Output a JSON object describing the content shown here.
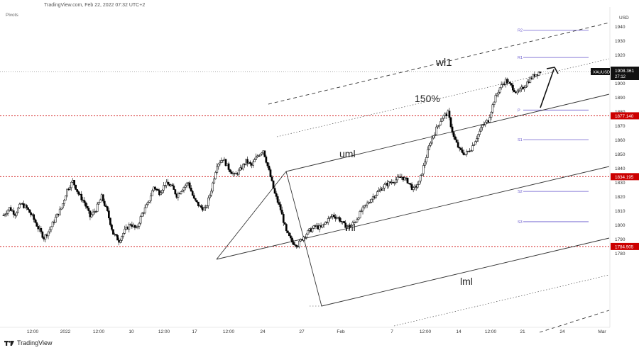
{
  "header": {
    "source": "TradingView.com, Feb 22, 2022 07:32 UTC+2",
    "indicator": "Pivots"
  },
  "footer": {
    "brand": "TradingView"
  },
  "colors": {
    "bull": "#ffffff",
    "bear": "#000000",
    "wick": "#000000",
    "level": "#cc0000",
    "pivot": "#6a5acd",
    "channel": "#333333"
  },
  "chart_data": {
    "type": "candlestick",
    "symbol": "XAUUSD",
    "axis_unit": "USD",
    "last_price": "1908.361",
    "countdown": "27:12",
    "ylim": [
      1776,
      1944
    ],
    "y_ticks": [
      1780,
      1790,
      1800,
      1810,
      1820,
      1830,
      1840,
      1850,
      1860,
      1870,
      1880,
      1890,
      1900,
      1910,
      1920,
      1930,
      1940
    ],
    "x_ticks": [
      "12:00",
      "2022",
      "12:00",
      "10",
      "12:00",
      "17",
      "12:00",
      "24",
      "27",
      "Feb",
      "7",
      "12:00",
      "14",
      "12:00",
      "21",
      "24",
      "Mar"
    ],
    "levels": [
      {
        "value": 1877.14,
        "label": "1877.140"
      },
      {
        "value": 1834.195,
        "label": "1834.195"
      },
      {
        "value": 1784.905,
        "label": "1784.905"
      }
    ],
    "pivots": [
      {
        "name": "R2",
        "value": 1937.5
      },
      {
        "name": "R1",
        "value": 1918.3
      },
      {
        "name": "P",
        "value": 1881.2
      },
      {
        "name": "S1",
        "value": 1860.3
      },
      {
        "name": "S2",
        "value": 1823.8
      },
      {
        "name": "S3",
        "value": 1802.4
      }
    ],
    "annotations": [
      "wl1",
      "150%",
      "uml",
      "ml",
      "lml"
    ],
    "path": [
      [
        0,
        1807
      ],
      [
        4,
        1812
      ],
      [
        8,
        1808
      ],
      [
        12,
        1815
      ],
      [
        16,
        1812
      ],
      [
        20,
        1806
      ],
      [
        24,
        1798
      ],
      [
        28,
        1791
      ],
      [
        32,
        1797
      ],
      [
        36,
        1805
      ],
      [
        40,
        1812
      ],
      [
        44,
        1825
      ],
      [
        48,
        1831
      ],
      [
        52,
        1822
      ],
      [
        56,
        1816
      ],
      [
        60,
        1806
      ],
      [
        64,
        1811
      ],
      [
        68,
        1820
      ],
      [
        72,
        1809
      ],
      [
        76,
        1794
      ],
      [
        80,
        1789
      ],
      [
        84,
        1796
      ],
      [
        88,
        1801
      ],
      [
        92,
        1797
      ],
      [
        96,
        1808
      ],
      [
        100,
        1815
      ],
      [
        104,
        1827
      ],
      [
        108,
        1823
      ],
      [
        112,
        1829
      ],
      [
        116,
        1828
      ],
      [
        120,
        1821
      ],
      [
        124,
        1826
      ],
      [
        128,
        1830
      ],
      [
        132,
        1818
      ],
      [
        136,
        1813
      ],
      [
        140,
        1811
      ],
      [
        144,
        1825
      ],
      [
        148,
        1843
      ],
      [
        152,
        1847
      ],
      [
        156,
        1840
      ],
      [
        160,
        1835
      ],
      [
        164,
        1839
      ],
      [
        168,
        1845
      ],
      [
        172,
        1842
      ],
      [
        176,
        1849
      ],
      [
        180,
        1853
      ],
      [
        184,
        1838
      ],
      [
        188,
        1822
      ],
      [
        192,
        1811
      ],
      [
        196,
        1795
      ],
      [
        200,
        1788
      ],
      [
        204,
        1786
      ],
      [
        208,
        1792
      ],
      [
        212,
        1796
      ],
      [
        216,
        1799
      ],
      [
        220,
        1798
      ],
      [
        224,
        1803
      ],
      [
        228,
        1807
      ],
      [
        232,
        1805
      ],
      [
        236,
        1800
      ],
      [
        240,
        1799
      ],
      [
        244,
        1803
      ],
      [
        248,
        1810
      ],
      [
        252,
        1815
      ],
      [
        256,
        1820
      ],
      [
        260,
        1824
      ],
      [
        264,
        1828
      ],
      [
        268,
        1830
      ],
      [
        272,
        1832
      ],
      [
        276,
        1834
      ],
      [
        280,
        1831
      ],
      [
        284,
        1825
      ],
      [
        288,
        1830
      ],
      [
        292,
        1845
      ],
      [
        296,
        1859
      ],
      [
        300,
        1868
      ],
      [
        304,
        1876
      ],
      [
        308,
        1879
      ],
      [
        312,
        1862
      ],
      [
        316,
        1853
      ],
      [
        320,
        1850
      ],
      [
        324,
        1854
      ],
      [
        328,
        1862
      ],
      [
        332,
        1870
      ],
      [
        336,
        1874
      ],
      [
        340,
        1888
      ],
      [
        344,
        1897
      ],
      [
        348,
        1902
      ],
      [
        352,
        1898
      ],
      [
        356,
        1893
      ],
      [
        360,
        1897
      ],
      [
        364,
        1902
      ],
      [
        368,
        1906
      ],
      [
        372,
        1908.4
      ]
    ]
  }
}
